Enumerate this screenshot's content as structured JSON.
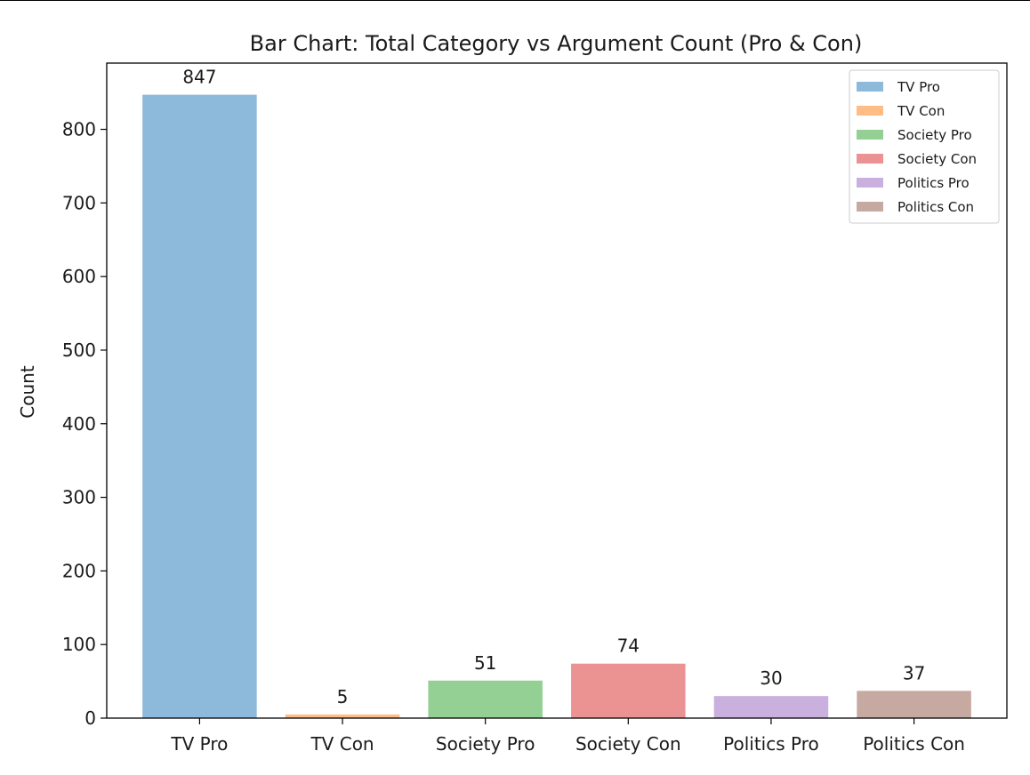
{
  "chart_data": {
    "type": "bar",
    "title": "Bar Chart: Total Category vs Argument Count (Pro & Con)",
    "xlabel": "",
    "ylabel": "Count",
    "ylim": [
      0,
      890
    ],
    "yticks": [
      0,
      100,
      200,
      300,
      400,
      500,
      600,
      700,
      800
    ],
    "grid": false,
    "legend_position": "top-right",
    "categories": [
      "TV Pro",
      "TV Con",
      "Society Pro",
      "Society Con",
      "Politics Pro",
      "Politics Con"
    ],
    "values": [
      847,
      5,
      51,
      74,
      30,
      37
    ],
    "colors": [
      "#8db9db",
      "#ffbd85",
      "#94d094",
      "#eb9293",
      "#c9b0df",
      "#c6a9a1"
    ],
    "bar_labels": [
      "847",
      "5",
      "51",
      "74",
      "30",
      "37"
    ]
  }
}
